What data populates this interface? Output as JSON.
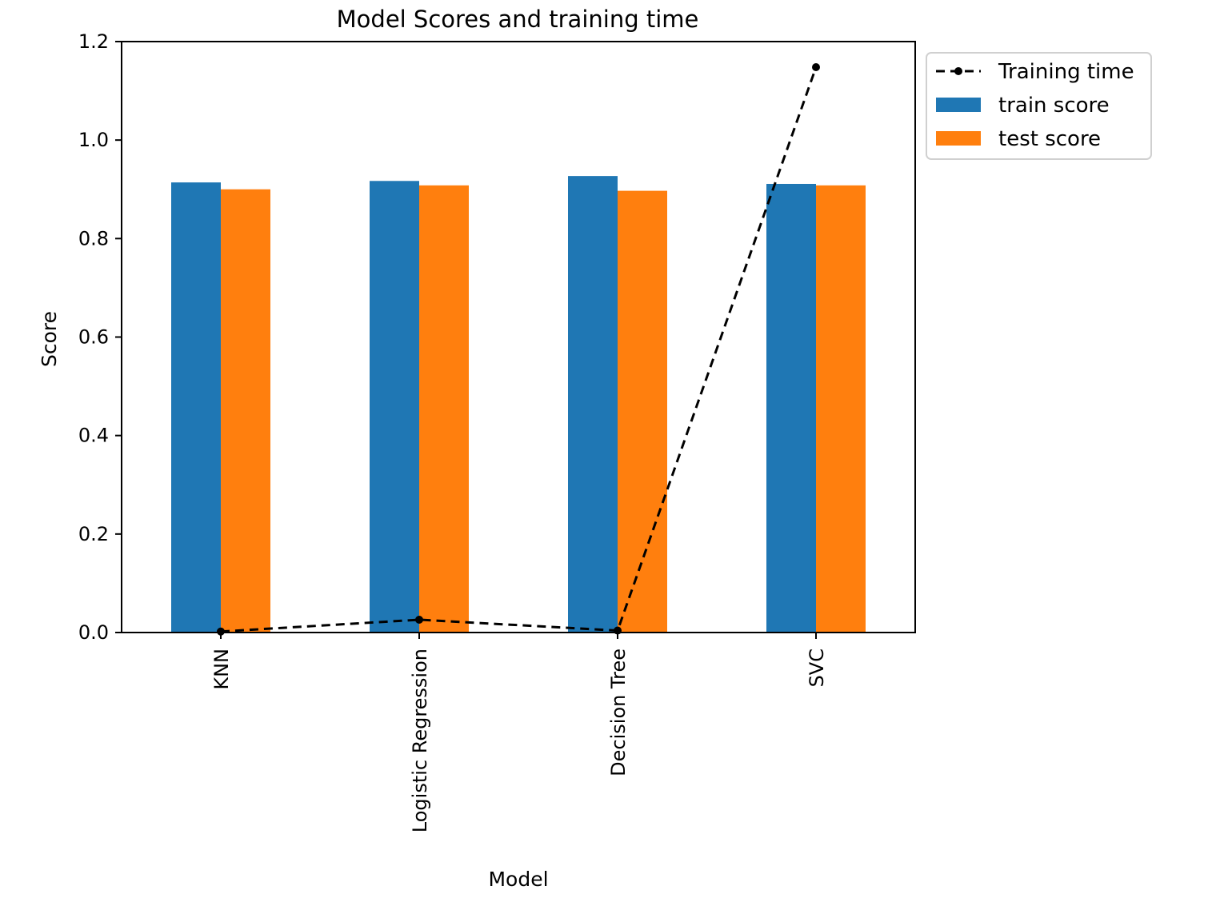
{
  "chart_data": {
    "type": "bar",
    "title": "Model Scores and training time",
    "xlabel": "Model",
    "ylabel": "Score",
    "categories": [
      "KNN",
      "Logistic Regression",
      "Decision Tree",
      "SVC"
    ],
    "ylim": [
      0,
      1.2
    ],
    "yticks": [
      "0.0",
      "0.2",
      "0.4",
      "0.6",
      "0.8",
      "1.0",
      "1.2"
    ],
    "series": [
      {
        "name": "train score",
        "kind": "bar",
        "color": "#1f77b4",
        "values": [
          0.914,
          0.917,
          0.927,
          0.911
        ]
      },
      {
        "name": "test score",
        "kind": "bar",
        "color": "#ff7f0e",
        "values": [
          0.9,
          0.908,
          0.897,
          0.908
        ]
      },
      {
        "name": "Training time",
        "kind": "line",
        "style": "dashed",
        "marker": "dot",
        "color": "#000000",
        "values": [
          0.002,
          0.026,
          0.004,
          1.148
        ]
      }
    ],
    "legend": {
      "placement": "outside-top-right",
      "entries": [
        "Training time",
        "train score",
        "test score"
      ]
    },
    "grid": false
  }
}
